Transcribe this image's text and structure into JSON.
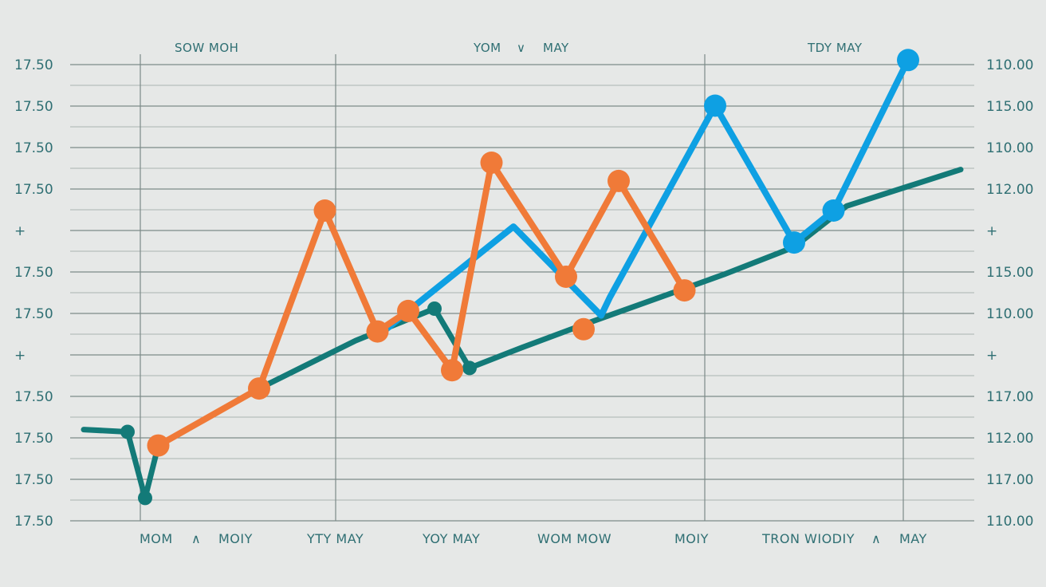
{
  "chart_data": {
    "type": "line",
    "title": "",
    "xlabel": "",
    "ylabel": "",
    "top_labels": [
      "SOW MOH",
      "YOM",
      "∨",
      "MAY",
      "TDY MAY"
    ],
    "categories": [
      "MOM",
      "∧",
      "MOIY",
      "YTY MAY",
      "YOY MAY",
      "WOM MOW",
      "MOIY",
      "TRON WIODIY",
      "∧",
      "MAY"
    ],
    "left_ticks": [
      "17.50",
      "17.50",
      "17.50",
      "17.50",
      "+",
      "17.50",
      "17.50",
      "+",
      "17.50",
      "17.50",
      "17.50",
      "17.50"
    ],
    "right_ticks": [
      "110.00",
      "115.00",
      "110.00",
      "112.00",
      "+",
      "115.00",
      "110.00",
      "+",
      "117.00",
      "112.00",
      "117.00",
      "110.00"
    ],
    "xlim": [
      0,
      100
    ],
    "ylim": [
      0,
      100
    ],
    "grid": true,
    "legend": "none",
    "series": [
      {
        "color": "#137a78",
        "points": [
          [
            0,
            20
          ],
          [
            5,
            19.5
          ],
          [
            7,
            5
          ],
          [
            8.5,
            16.5
          ],
          [
            20,
            29
          ],
          [
            31,
            39.5
          ],
          [
            40,
            46.5
          ],
          [
            44,
            33.5
          ],
          [
            50,
            38
          ],
          [
            57,
            43
          ],
          [
            73,
            54
          ],
          [
            81,
            60
          ],
          [
            87,
            69
          ],
          [
            100,
            77
          ]
        ],
        "markers": [
          [
            5,
            19.5
          ],
          [
            7,
            5
          ],
          [
            40,
            46.5
          ],
          [
            44,
            33.5
          ]
        ]
      },
      {
        "color": "#0ea0e3",
        "points": [
          [
            34.5,
            42
          ],
          [
            37,
            46
          ],
          [
            49,
            64.5
          ],
          [
            59,
            45
          ],
          [
            60,
            49
          ],
          [
            72,
            91
          ],
          [
            81,
            61
          ],
          [
            85.5,
            68
          ],
          [
            94,
            101
          ]
        ],
        "markers": [
          [
            72,
            91
          ],
          [
            81,
            61
          ],
          [
            85.5,
            68
          ],
          [
            94,
            101
          ]
        ]
      },
      {
        "color": "#f07a38",
        "points": [
          [
            8.5,
            16.5
          ],
          [
            20,
            29
          ],
          [
            27.5,
            68
          ],
          [
            33.5,
            41.5
          ],
          [
            37,
            46
          ],
          [
            42,
            33
          ],
          [
            46.5,
            78.5
          ],
          [
            55,
            53.5
          ],
          [
            61,
            74.5
          ],
          [
            68.5,
            50.5
          ]
        ],
        "markers": [
          [
            8.5,
            16.5
          ],
          [
            20,
            29
          ],
          [
            27.5,
            68
          ],
          [
            33.5,
            41.5
          ],
          [
            37,
            46
          ],
          [
            42,
            33
          ],
          [
            46.5,
            78.5
          ],
          [
            55,
            53.5
          ],
          [
            61,
            74.5
          ],
          [
            57,
            42
          ],
          [
            68.5,
            50.5
          ]
        ]
      }
    ]
  }
}
